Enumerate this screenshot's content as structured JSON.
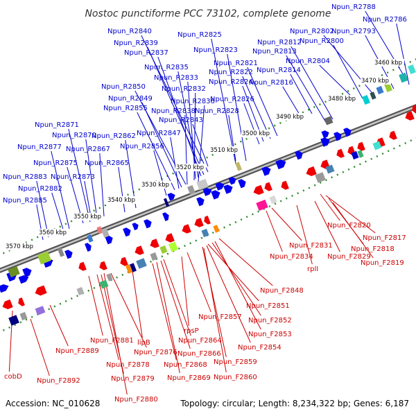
{
  "title": "Nostoc punctiforme PCC 73102, complete genome",
  "footer": {
    "accession": "Accession: NC_010628",
    "summary": "Topology: circular; Length: 8,234,322 bp; Genes: 6,187"
  },
  "colors": {
    "forward_label": "#0000cc",
    "reverse_label": "#cc0000",
    "forward_gene": "#0000ee",
    "reverse_gene": "#ee0000",
    "backbone": "#555555",
    "tick": "#2e8b2e"
  },
  "scale_labels": [
    "3460 kbp",
    "3470 kbp",
    "3480 kbp",
    "3490 kbp",
    "3500 kbp",
    "3510 kbp",
    "3520 kbp",
    "3530 kbp",
    "3540 kbp",
    "3550 kbp",
    "3560 kbp",
    "3570 kbp"
  ],
  "forward_labels": [
    "Npun_R2788",
    "Npun_R2786",
    "Npun_R2802",
    "Npun_R2793",
    "Npun_R2800",
    "Npun_R2812",
    "Npun_R2813",
    "Npun_R2804",
    "Npun_R2825",
    "Npun_R2840",
    "Npun_R2839",
    "Npun_R2823",
    "Npun_R2837",
    "Npun_R2821",
    "Npun_R2814",
    "Npun_R2835",
    "Npun_R2822",
    "Npun_R2833",
    "Npun_R2824",
    "Npun_R2816",
    "Npun_R2850",
    "Npun_R2832",
    "Npun_R2849",
    "Npun_R2836",
    "Npun_R2826",
    "Npun_R2855",
    "Npun_R2838",
    "Npun_R2828",
    "Npun_R2843",
    "Npun_R2871",
    "Npun_R2847",
    "Npun_R2870",
    "Npun_R2862",
    "Npun_R2877",
    "Npun_R2867",
    "Npun_R2856",
    "Npun_R2875",
    "Npun_R2865",
    "Npun_R2883",
    "Npun_R2873",
    "Npun_R2882",
    "Npun_R2885"
  ],
  "reverse_labels": [
    "Npun_F2820",
    "Npun_F2817",
    "Npun_F2818",
    "Npun_F2831",
    "Npun_F2819",
    "Npun_F2834",
    "Npun_F2829",
    "rplI",
    "Npun_F2848",
    "Npun_F2851",
    "Npun_F2857",
    "Npun_F2852",
    "rpsP",
    "Npun_F2853",
    "Npun_F2881",
    "lipB",
    "Npun_F2864",
    "Npun_F2854",
    "Npun_F2889",
    "Npun_F2876",
    "Npun_F2866",
    "Npun_F2878",
    "Npun_F2868",
    "Npun_F2859",
    "cobD",
    "Npun_F2879",
    "Npun_F2869",
    "Npun_F2860",
    "Npun_F2892",
    "Npun_F2880"
  ]
}
